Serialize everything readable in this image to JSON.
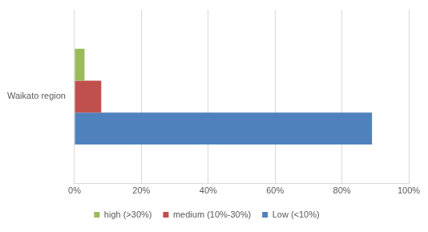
{
  "chart_data": {
    "type": "bar",
    "orientation": "horizontal",
    "categories": [
      "Waikato region"
    ],
    "series": [
      {
        "name": "high (>30%)",
        "color": "#9bbb59",
        "values": [
          3
        ]
      },
      {
        "name": "medium (10%-30%)",
        "color": "#c0504d",
        "values": [
          8
        ]
      },
      {
        "name": "Low (<10%)",
        "color": "#4f81bd",
        "values": [
          89
        ]
      }
    ],
    "xlim": [
      0,
      100
    ],
    "xticks": [
      {
        "value": 0,
        "label": "0%"
      },
      {
        "value": 20,
        "label": "20%"
      },
      {
        "value": 40,
        "label": "40%"
      },
      {
        "value": 60,
        "label": "60%"
      },
      {
        "value": 80,
        "label": "80%"
      },
      {
        "value": 100,
        "label": "100%"
      }
    ],
    "grid": true,
    "legend": "bottom"
  }
}
